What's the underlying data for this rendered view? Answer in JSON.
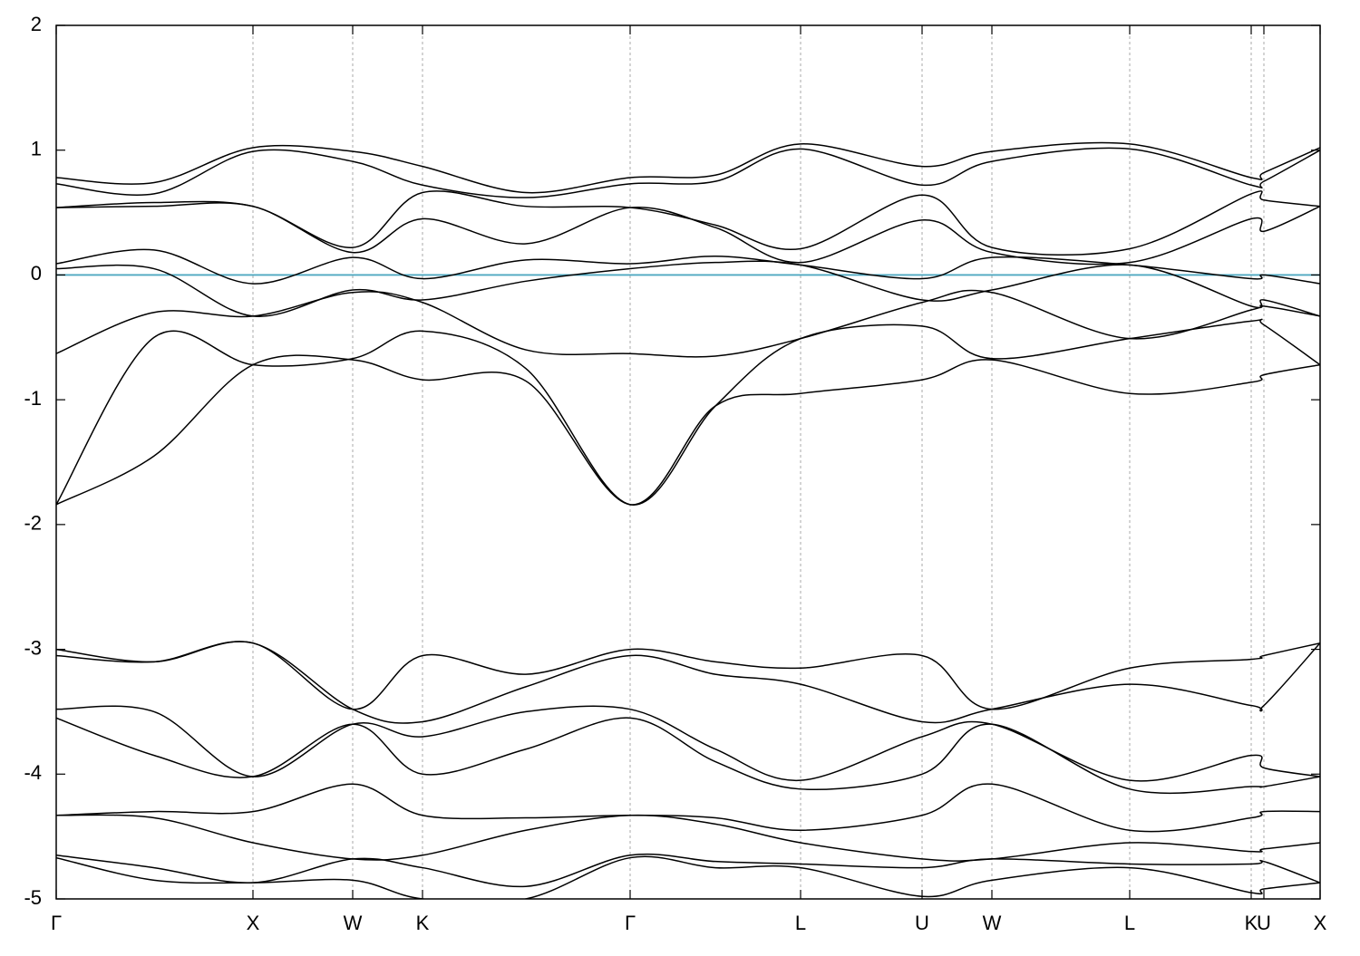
{
  "chart_data": {
    "type": "line",
    "x": [
      0,
      108,
      217,
      327,
      404,
      518,
      633,
      727,
      821,
      955,
      1032,
      1184,
      1318,
      1332,
      1394
    ],
    "xlim": [
      0,
      1394
    ],
    "xticks": [
      {
        "value": 0,
        "label": "Γ"
      },
      {
        "value": 217,
        "label": "X"
      },
      {
        "value": 327,
        "label": "W"
      },
      {
        "value": 404,
        "label": "K"
      },
      {
        "value": 633,
        "label": "Γ"
      },
      {
        "value": 821,
        "label": "L"
      },
      {
        "value": 955,
        "label": "U"
      },
      {
        "value": 1032,
        "label": "W"
      },
      {
        "value": 1184,
        "label": "L"
      },
      {
        "value": 1318,
        "label": "K"
      },
      {
        "value": 1332,
        "label": "U"
      },
      {
        "value": 1394,
        "label": "X"
      }
    ],
    "ylim": [
      -5,
      2
    ],
    "yticks": [
      -5,
      -4,
      -3,
      -2,
      -1,
      0,
      1,
      2
    ],
    "grid": true,
    "color": "#000000",
    "fermi_level": 0,
    "fermi_color": "#4fa8c0",
    "series": [
      {
        "values": [
          0.78,
          0.74,
          1.02,
          0.99,
          0.87,
          0.66,
          0.78,
          0.8,
          1.05,
          0.87,
          0.99,
          1.05,
          0.78,
          0.82,
          1.02
        ]
      },
      {
        "values": [
          0.73,
          0.65,
          0.99,
          0.91,
          0.72,
          0.62,
          0.73,
          0.75,
          1.01,
          0.72,
          0.91,
          1.01,
          0.72,
          0.75,
          1.0
        ]
      },
      {
        "values": [
          0.54,
          0.58,
          0.55,
          0.22,
          0.66,
          0.55,
          0.54,
          0.4,
          0.21,
          0.64,
          0.22,
          0.21,
          0.65,
          0.6,
          0.55
        ]
      },
      {
        "values": [
          0.54,
          0.55,
          0.55,
          0.18,
          0.45,
          0.25,
          0.54,
          0.38,
          0.1,
          0.44,
          0.18,
          0.1,
          0.45,
          0.35,
          0.55
        ]
      },
      {
        "values": [
          0.09,
          0.2,
          -0.07,
          0.14,
          -0.03,
          0.12,
          0.09,
          0.15,
          0.08,
          -0.03,
          0.14,
          0.08,
          -0.03,
          0.0,
          -0.07
        ]
      },
      {
        "values": [
          0.05,
          0.05,
          -0.33,
          -0.12,
          -0.2,
          -0.05,
          0.05,
          0.1,
          0.08,
          -0.2,
          -0.12,
          0.08,
          -0.25,
          -0.2,
          -0.33
        ]
      },
      {
        "values": [
          -0.63,
          -0.3,
          -0.33,
          -0.14,
          -0.22,
          -0.6,
          -0.63,
          -0.65,
          -0.51,
          -0.22,
          -0.14,
          -0.51,
          -0.28,
          -0.25,
          -0.33
        ]
      },
      {
        "values": [
          -1.84,
          -0.5,
          -0.72,
          -0.67,
          -0.45,
          -0.75,
          -1.84,
          -1.05,
          -0.51,
          -0.41,
          -0.67,
          -0.51,
          -0.37,
          -0.4,
          -0.72
        ]
      },
      {
        "values": [
          -1.84,
          -1.45,
          -0.72,
          -0.68,
          -0.84,
          -0.85,
          -1.84,
          -1.05,
          -0.95,
          -0.84,
          -0.68,
          -0.95,
          -0.86,
          -0.8,
          -0.72
        ]
      },
      {
        "values": [
          -3.0,
          -3.1,
          -2.95,
          -3.48,
          -3.05,
          -3.2,
          -3.0,
          -3.1,
          -3.15,
          -3.05,
          -3.48,
          -3.15,
          -3.08,
          -3.05,
          -2.95
        ]
      },
      {
        "values": [
          -3.05,
          -3.1,
          -2.95,
          -3.48,
          -3.58,
          -3.3,
          -3.05,
          -3.2,
          -3.28,
          -3.58,
          -3.48,
          -3.28,
          -3.45,
          -3.45,
          -2.95
        ]
      },
      {
        "values": [
          -3.48,
          -3.5,
          -4.02,
          -3.6,
          -3.7,
          -3.5,
          -3.48,
          -3.8,
          -4.05,
          -3.7,
          -3.6,
          -4.05,
          -3.85,
          -3.95,
          -4.02
        ]
      },
      {
        "values": [
          -3.55,
          -3.85,
          -4.02,
          -3.6,
          -4.0,
          -3.8,
          -3.55,
          -3.9,
          -4.12,
          -4.0,
          -3.6,
          -4.12,
          -4.1,
          -4.1,
          -4.02
        ]
      },
      {
        "values": [
          -4.33,
          -4.3,
          -4.3,
          -4.08,
          -4.33,
          -4.35,
          -4.33,
          -4.35,
          -4.45,
          -4.33,
          -4.08,
          -4.45,
          -4.35,
          -4.3,
          -4.3
        ]
      },
      {
        "values": [
          -4.33,
          -4.35,
          -4.55,
          -4.68,
          -4.65,
          -4.45,
          -4.33,
          -4.4,
          -4.55,
          -4.68,
          -4.68,
          -4.55,
          -4.62,
          -4.6,
          -4.55
        ]
      },
      {
        "values": [
          -4.65,
          -4.75,
          -4.87,
          -4.68,
          -4.75,
          -4.9,
          -4.65,
          -4.7,
          -4.72,
          -4.75,
          -4.68,
          -4.72,
          -4.72,
          -4.7,
          -4.87
        ]
      },
      {
        "values": [
          -4.67,
          -4.85,
          -4.87,
          -4.85,
          -5.0,
          -5.0,
          -4.67,
          -4.75,
          -4.75,
          -4.98,
          -4.85,
          -4.75,
          -4.95,
          -4.92,
          -4.87
        ]
      }
    ]
  }
}
